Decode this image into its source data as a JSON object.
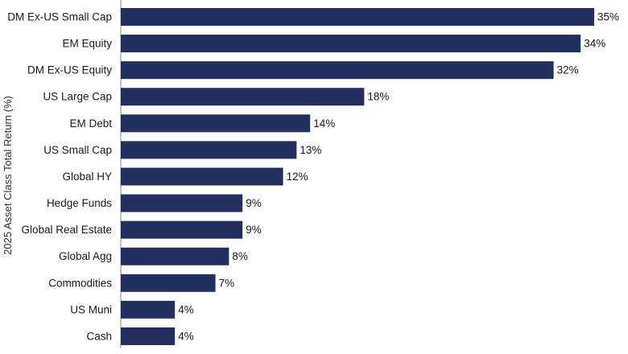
{
  "chart_data": {
    "type": "bar",
    "orientation": "horizontal",
    "title": "",
    "xlabel": "",
    "ylabel": "2025 Asset Class Total Return (%)",
    "categories": [
      "DM Ex-US Small Cap",
      "EM Equity",
      "DM Ex-US Equity",
      "US Large Cap",
      "EM Debt",
      "US Small Cap",
      "Global HY",
      "Hedge Funds",
      "Global Real Estate",
      "Global Agg",
      "Commodities",
      "US Muni",
      "Cash"
    ],
    "values": [
      35,
      34,
      32,
      18,
      14,
      13,
      12,
      9,
      9,
      8,
      7,
      4,
      4
    ],
    "value_labels": [
      "35%",
      "34%",
      "32%",
      "18%",
      "14%",
      "13%",
      "12%",
      "9%",
      "9%",
      "8%",
      "7%",
      "4%",
      "4%"
    ],
    "xlim": [
      0,
      35
    ],
    "grid": false,
    "legend": "none",
    "bar_color": "#232f5f"
  }
}
